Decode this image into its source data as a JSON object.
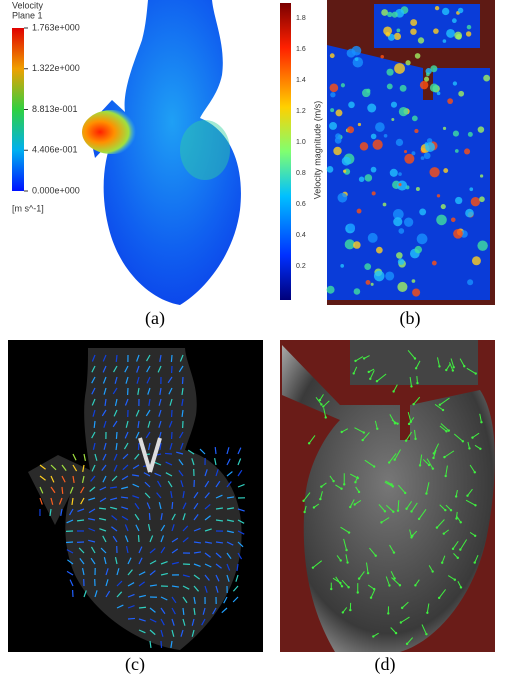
{
  "panels": [
    {
      "caption": "(a)",
      "legend": {
        "title": [
          "Velocity",
          "Plane 1"
        ],
        "ticks": [
          "1.763e+000",
          "1.322e+000",
          "8.813e-001",
          "4.406e-001",
          "0.000e+000"
        ],
        "unit": "[m s^-1]"
      }
    },
    {
      "caption": "(b)",
      "legend": {
        "label": "Velocity magnitude (m/s)",
        "ticks": [
          "1.8",
          "1.6",
          "1.4",
          "1.2",
          "1.0",
          "0.8",
          "0.6",
          "0.4",
          "0.2"
        ]
      }
    },
    {
      "caption": "(c)"
    },
    {
      "caption": "(d)"
    }
  ]
}
